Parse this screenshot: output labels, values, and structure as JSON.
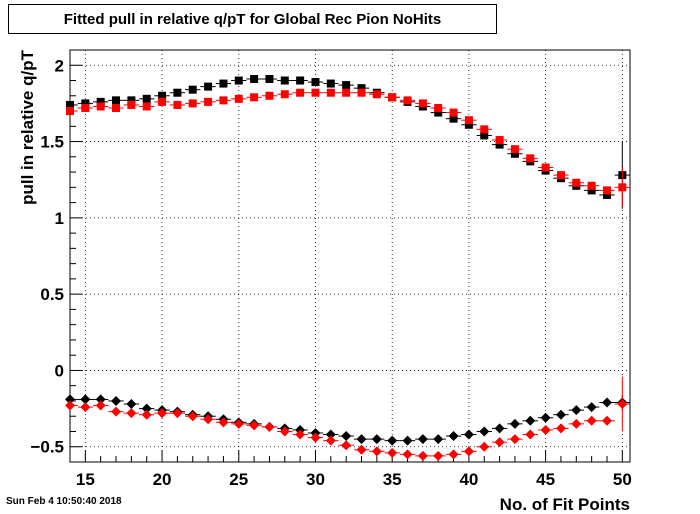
{
  "chart_data": {
    "type": "scatter",
    "title": "Fitted pull in relative q/pT for Global Rec Pion NoHits",
    "xlabel": "No. of Fit Points",
    "ylabel": "pull in relative q/pT",
    "xlim": [
      14,
      50.5
    ],
    "ylim": [
      -0.6,
      2.1
    ],
    "xticks": [
      15,
      20,
      25,
      30,
      35,
      40,
      45,
      50
    ],
    "yticks": [
      -0.5,
      0,
      0.5,
      1,
      1.5,
      2
    ],
    "ytick_labels": [
      "−0.5",
      "0",
      "0.5",
      "1",
      "1.5",
      "2"
    ],
    "grid": true,
    "x": [
      14,
      15,
      16,
      17,
      18,
      19,
      20,
      21,
      22,
      23,
      24,
      25,
      26,
      27,
      28,
      29,
      30,
      31,
      32,
      33,
      34,
      35,
      36,
      37,
      38,
      39,
      40,
      41,
      42,
      43,
      44,
      45,
      46,
      47,
      48,
      49,
      50
    ],
    "series": [
      {
        "marker": "square",
        "color": "#000000",
        "values": [
          1.74,
          1.75,
          1.76,
          1.77,
          1.77,
          1.78,
          1.8,
          1.82,
          1.84,
          1.86,
          1.88,
          1.9,
          1.91,
          1.91,
          1.9,
          1.9,
          1.89,
          1.88,
          1.87,
          1.85,
          1.82,
          1.79,
          1.76,
          1.73,
          1.69,
          1.65,
          1.61,
          1.54,
          1.48,
          1.42,
          1.37,
          1.31,
          1.26,
          1.21,
          1.18,
          1.15,
          1.28
        ]
      },
      {
        "marker": "square",
        "color": "#ff0000",
        "values": [
          1.7,
          1.72,
          1.73,
          1.72,
          1.74,
          1.73,
          1.76,
          1.74,
          1.75,
          1.76,
          1.77,
          1.78,
          1.79,
          1.8,
          1.81,
          1.82,
          1.82,
          1.82,
          1.82,
          1.82,
          1.81,
          1.79,
          1.77,
          1.75,
          1.72,
          1.69,
          1.64,
          1.58,
          1.51,
          1.45,
          1.39,
          1.33,
          1.28,
          1.23,
          1.21,
          1.18,
          1.2
        ]
      },
      {
        "marker": "diamond",
        "color": "#000000",
        "values": [
          -0.19,
          -0.19,
          -0.19,
          -0.2,
          -0.22,
          -0.25,
          -0.26,
          -0.27,
          -0.29,
          -0.3,
          -0.32,
          -0.34,
          -0.35,
          -0.37,
          -0.38,
          -0.39,
          -0.41,
          -0.42,
          -0.43,
          -0.45,
          -0.45,
          -0.46,
          -0.46,
          -0.45,
          -0.45,
          -0.43,
          -0.42,
          -0.4,
          -0.38,
          -0.35,
          -0.33,
          -0.31,
          -0.29,
          -0.26,
          -0.24,
          -0.21,
          -0.21
        ]
      },
      {
        "marker": "diamond",
        "color": "#ff0000",
        "values": [
          -0.23,
          -0.24,
          -0.23,
          -0.27,
          -0.28,
          -0.29,
          -0.28,
          -0.28,
          -0.3,
          -0.32,
          -0.34,
          -0.35,
          -0.36,
          -0.37,
          -0.4,
          -0.42,
          -0.44,
          -0.46,
          -0.49,
          -0.52,
          -0.53,
          -0.54,
          -0.55,
          -0.56,
          -0.56,
          -0.55,
          -0.53,
          -0.5,
          -0.47,
          -0.45,
          -0.42,
          -0.39,
          -0.38,
          -0.35,
          -0.33,
          -0.33,
          -0.22
        ]
      }
    ],
    "error_bar_last": [
      0.22,
      0.13,
      0.05,
      0.18
    ]
  },
  "footer": {
    "timestamp": "Sun Feb  4 10:50:40 2018"
  }
}
